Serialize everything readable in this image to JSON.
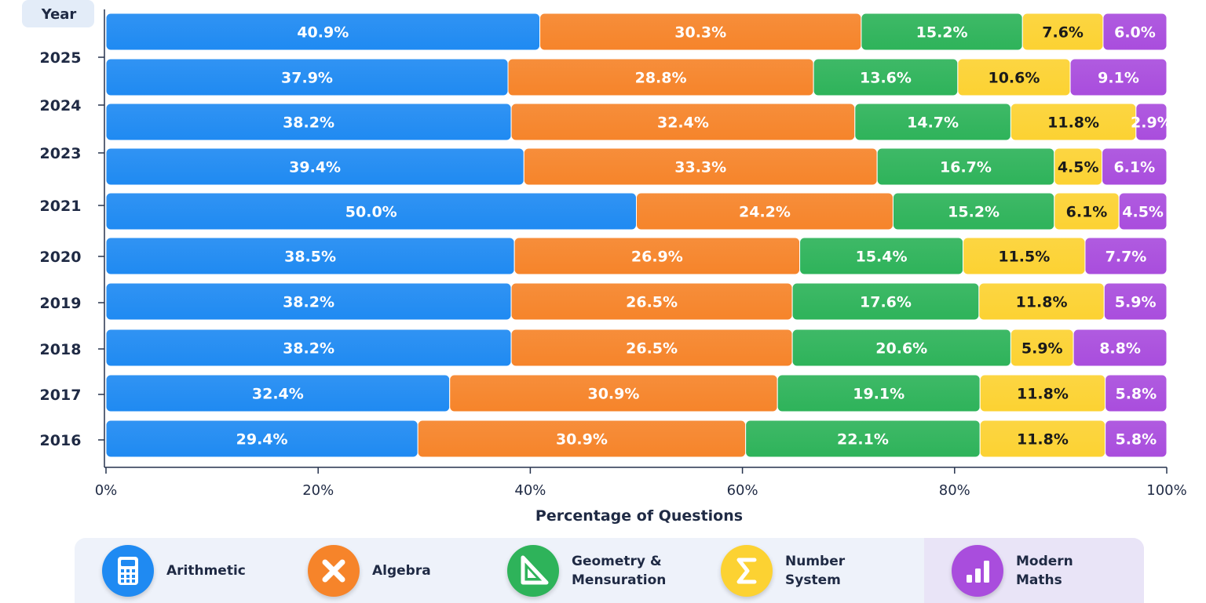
{
  "chart_data": {
    "type": "bar",
    "orientation": "horizontal",
    "stacked": true,
    "y_header": "Year",
    "categories": [
      "",
      "2025",
      "2024",
      "2023",
      "2021",
      "2020",
      "2019",
      "2018",
      "2017",
      "2016"
    ],
    "series": [
      {
        "name": "Arithmetic",
        "color": "#1f8af2",
        "values": [
          40.9,
          37.9,
          38.2,
          39.4,
          50.0,
          38.5,
          38.2,
          38.2,
          32.4,
          29.4
        ]
      },
      {
        "name": "Algebra",
        "color": "#f6842a",
        "values": [
          30.3,
          28.8,
          32.4,
          33.3,
          24.2,
          26.9,
          26.5,
          26.5,
          30.9,
          30.9
        ]
      },
      {
        "name": "Geometry &\nMensuration",
        "color": "#2eb35a",
        "values": [
          15.2,
          13.6,
          14.7,
          16.7,
          15.2,
          15.4,
          17.6,
          20.6,
          19.1,
          22.1
        ]
      },
      {
        "name": "Number System",
        "color": "#fcd232",
        "values": [
          7.6,
          10.6,
          11.8,
          4.5,
          6.1,
          11.5,
          11.8,
          5.9,
          11.8,
          11.8
        ]
      },
      {
        "name": "Modern Maths",
        "color": "#a94ddd",
        "values": [
          6.0,
          9.1,
          2.9,
          6.1,
          4.5,
          7.7,
          5.9,
          8.8,
          5.8,
          5.8
        ]
      }
    ],
    "data_labels": [
      [
        "40.9%",
        "30.3%",
        "15.2%",
        "7.6%",
        "6.0%"
      ],
      [
        "37.9%",
        "28.8%",
        "13.6%",
        "10.6%",
        "9.1%"
      ],
      [
        "38.2%",
        "32.4%",
        "14.7%",
        "11.8%",
        "2.9%"
      ],
      [
        "39.4%",
        "33.3%",
        "16.7%",
        "4.5%",
        "6.1%"
      ],
      [
        "50.0%",
        "24.2%",
        "15.2%",
        "6.1%",
        "4.5%"
      ],
      [
        "38.5%",
        "26.9%",
        "15.4%",
        "11.5%",
        "7.7%"
      ],
      [
        "38.2%",
        "26.5%",
        "17.6%",
        "11.8%",
        "5.9%"
      ],
      [
        "38.2%",
        "26.5%",
        "20.6%",
        "5.9%",
        "8.8%"
      ],
      [
        "32.4%",
        "30.9%",
        "19.1%",
        "11.8%",
        "5.8%"
      ],
      [
        "29.4%",
        "30.9%",
        "22.1%",
        "11.8%",
        "5.8%"
      ]
    ],
    "xlabel": "Percentage of Questions",
    "xlim": [
      0,
      100
    ],
    "xticks": [
      0,
      20,
      40,
      60,
      80,
      100
    ],
    "xtick_labels": [
      "0%",
      "20%",
      "40%",
      "60%",
      "80%",
      "100%"
    ],
    "legend_position": "bottom",
    "legend": [
      {
        "label": "Arithmetic",
        "icon": "calculator-icon",
        "color": "#1f8af2"
      },
      {
        "label": "Algebra",
        "icon": "multiply-icon",
        "color": "#f6842a"
      },
      {
        "label": "Geometry &\nMensuration",
        "icon": "set-square-icon",
        "color": "#2eb35a"
      },
      {
        "label": "Number System",
        "icon": "sigma-icon",
        "color": "#fcd232"
      },
      {
        "label": "Modern Maths",
        "icon": "bar-chart-icon",
        "color": "#a94ddd"
      }
    ],
    "label_colors": {
      "Arithmetic": "#ffffff",
      "Algebra": "#ffffff",
      "Geometry &\nMensuration": "#ffffff",
      "Number System": "#1a1a1a",
      "Modern Maths": "#ffffff"
    }
  }
}
